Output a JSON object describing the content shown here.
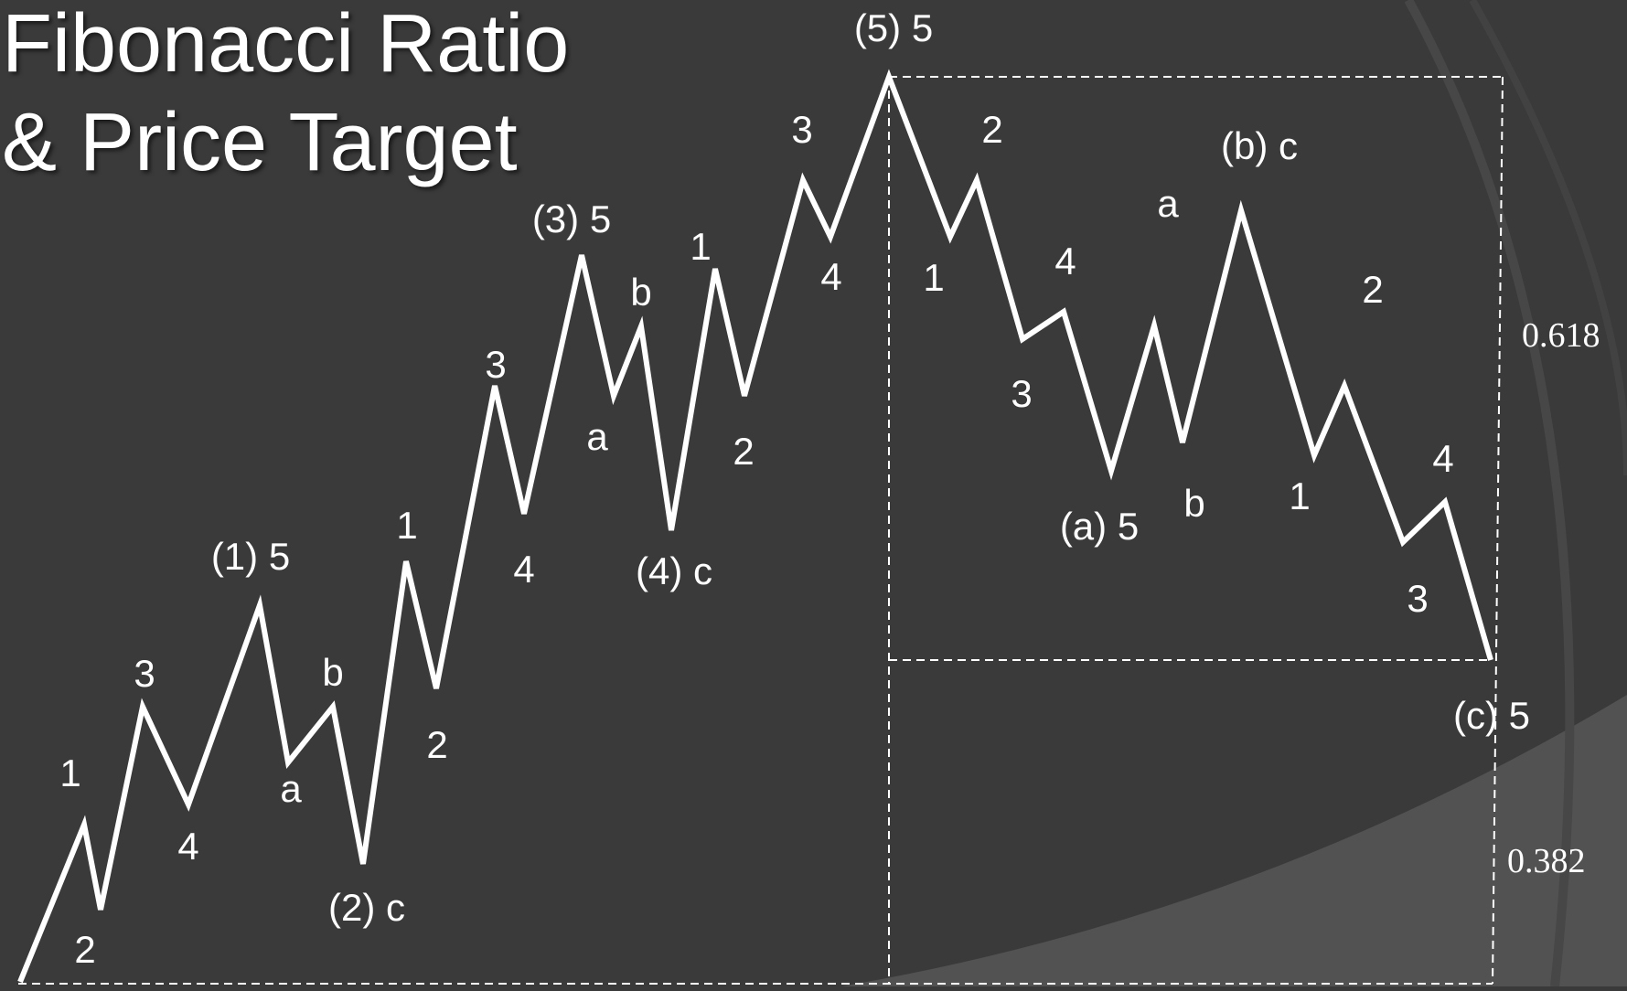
{
  "slide": {
    "title_line1": "Fibonacci Ratio",
    "title_line2": "& Price Target"
  },
  "colors": {
    "background": "#3a3a3a",
    "arc_ring": "#4a4a4a",
    "arc_fill": "#545454",
    "wave_line": "#ffffff",
    "guide_line": "#ffffff"
  },
  "ratios": {
    "upper": "0.618",
    "lower": "0.382"
  },
  "wave_labels": [
    "1",
    "2",
    "3",
    "4",
    "(1) 5",
    "a",
    "b",
    "(2) c",
    "1",
    "2",
    "3",
    "4",
    "(3) 5",
    "a",
    "b",
    "(4) c",
    "1",
    "2",
    "3",
    "4",
    "(5) 5",
    "1",
    "2",
    "3",
    "4",
    "(a) 5",
    "a",
    "b",
    "(b) c",
    "1",
    "2",
    "3",
    "4",
    "(c) 5"
  ]
}
